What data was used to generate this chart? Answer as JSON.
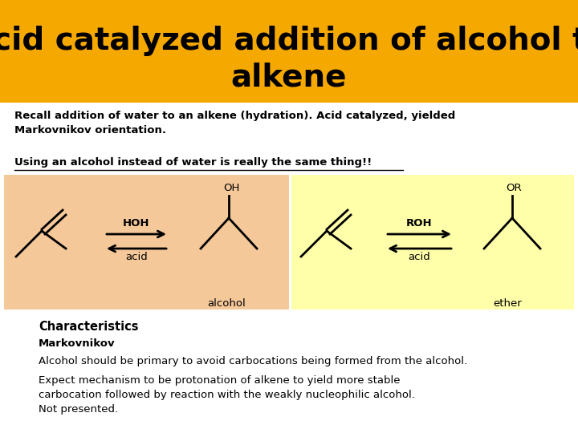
{
  "title_line1": "Acid catalyzed addition of alcohol to",
  "title_line2": "alkene",
  "title_bg": "#F5A800",
  "title_color": "#000000",
  "title_fontsize": 28,
  "body_bg": "#FFFFFF",
  "text1_bold": "Recall addition of water to an alkene (hydration). Acid catalyzed, yielded\nMarkovnikov orientation.",
  "text2_underline": "Using an alcohol instead of water is really the same thing!!",
  "box1_bg": "#F5C89A",
  "box2_bg": "#FFFFAA",
  "char_title": "Characteristics",
  "char1": "Markovnikov",
  "char2": "Alcohol should be primary to avoid carbocations being formed from the alcohol.",
  "char3": "Expect mechanism to be protonation of alkene to yield more stable\ncarbocation followed by reaction with the weakly nucleophilic alcohol.\nNot presented."
}
